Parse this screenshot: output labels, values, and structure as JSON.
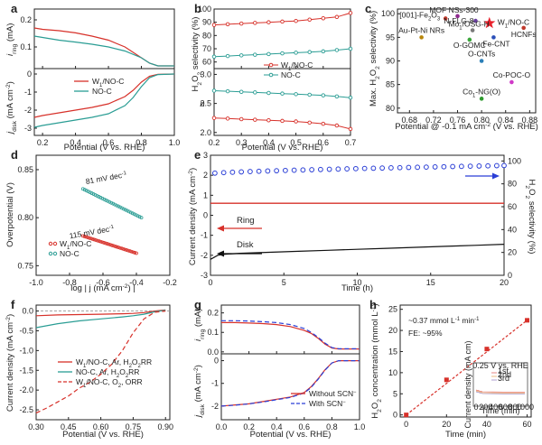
{
  "colors": {
    "red": "#d7312a",
    "teal": "#2a9d94",
    "blue": "#2b3fd6",
    "black": "#111111",
    "gray": "#888888"
  },
  "chart_data": [
    {
      "id": "a",
      "type": "line",
      "panel_label": "a",
      "xlabel": "Potential (V vs. RHE)",
      "xticks": [
        "0.2",
        "0.4",
        "0.6",
        "0.8",
        "1.0"
      ],
      "xlim": [
        0.15,
        1.0
      ],
      "top": {
        "ylabel": "i_ring (mA)",
        "ylabel_main": "i",
        "ylabel_sub": "ring",
        "ylabel_unit": " (mA)",
        "yticks": [
          "0.1",
          "0.2"
        ],
        "ylim": [
          0.02,
          0.24
        ],
        "series": [
          {
            "name": "W1/NO-C",
            "color": "red",
            "x": [
              0.15,
              0.2,
              0.3,
              0.4,
              0.5,
              0.6,
              0.7,
              0.8,
              0.85,
              0.9,
              1.0
            ],
            "y": [
              0.17,
              0.165,
              0.16,
              0.152,
              0.14,
              0.125,
              0.1,
              0.06,
              0.04,
              0.03,
              0.03
            ]
          },
          {
            "name": "NO-C",
            "color": "teal",
            "x": [
              0.15,
              0.2,
              0.3,
              0.4,
              0.5,
              0.6,
              0.7,
              0.8,
              0.85,
              0.9,
              1.0
            ],
            "y": [
              0.14,
              0.135,
              0.125,
              0.118,
              0.11,
              0.1,
              0.085,
              0.06,
              0.04,
              0.03,
              0.03
            ]
          }
        ]
      },
      "bottom": {
        "ylabel": "j_disk (mA cm^-2)",
        "ylabel_main": "j",
        "ylabel_sub": "disk",
        "ylabel_unit": " (mA cm",
        "ylabel_sup": "-2",
        "ylabel_close": ")",
        "yticks": [
          "-3",
          "-2",
          "-1",
          "0"
        ],
        "ylim": [
          -3.4,
          0.3
        ],
        "series": [
          {
            "name": "W1/NO-C",
            "color": "red",
            "x": [
              0.15,
              0.2,
              0.3,
              0.4,
              0.5,
              0.6,
              0.7,
              0.75,
              0.8,
              0.85,
              0.9,
              1.0
            ],
            "y": [
              -2.4,
              -2.3,
              -2.15,
              -2.0,
              -1.85,
              -1.65,
              -1.25,
              -0.9,
              -0.45,
              -0.12,
              -0.02,
              0
            ]
          },
          {
            "name": "NO-C",
            "color": "teal",
            "x": [
              0.15,
              0.2,
              0.3,
              0.4,
              0.5,
              0.6,
              0.7,
              0.75,
              0.8,
              0.85,
              0.9,
              1.0
            ],
            "y": [
              -2.95,
              -2.85,
              -2.7,
              -2.55,
              -2.4,
              -2.2,
              -1.75,
              -1.3,
              -0.7,
              -0.2,
              -0.03,
              0
            ]
          }
        ],
        "legend": [
          {
            "prefix": "W",
            "sub": "1",
            "suffix": "/NO-C",
            "color": "red"
          },
          {
            "prefix": "NO-C",
            "sub": "",
            "suffix": "",
            "color": "teal"
          }
        ]
      }
    },
    {
      "id": "b",
      "type": "line",
      "panel_label": "b",
      "xlabel": "Potential (V vs. RHE)",
      "xticks": [
        "0.2",
        "0.3",
        "0.4",
        "0.5",
        "0.6",
        "0.7"
      ],
      "xlim": [
        0.2,
        0.7
      ],
      "top": {
        "ylabel": "H2O2 selectivity (%)",
        "yticks": [
          "60",
          "70",
          "80",
          "90",
          "100"
        ],
        "ylim": [
          55,
          100
        ],
        "series": [
          {
            "name": "W1/NO-C",
            "color": "red",
            "marker": "circle",
            "x": [
              0.2,
              0.25,
              0.3,
              0.35,
              0.4,
              0.45,
              0.5,
              0.55,
              0.6,
              0.65,
              0.7
            ],
            "y": [
              88,
              88.5,
              89,
              89.5,
              90,
              90.5,
              91,
              92,
              93,
              94,
              97
            ]
          },
          {
            "name": "NO-C",
            "color": "teal",
            "marker": "circle",
            "x": [
              0.2,
              0.25,
              0.3,
              0.35,
              0.4,
              0.45,
              0.5,
              0.55,
              0.6,
              0.65,
              0.7
            ],
            "y": [
              64,
              64.5,
              65,
              65.5,
              66,
              66.5,
              67,
              67.5,
              68,
              69,
              70
            ]
          }
        ],
        "legend": [
          {
            "prefix": "W",
            "sub": "1",
            "suffix": "/NO-C",
            "color": "red"
          },
          {
            "prefix": "NO-C",
            "sub": "",
            "suffix": "",
            "color": "teal"
          }
        ]
      },
      "bottom": {
        "ylabel": "n",
        "yticks": [
          "2.0",
          "2.5",
          "3.0"
        ],
        "ylim": [
          1.95,
          3.1
        ],
        "series": [
          {
            "name": "W1/NO-C",
            "color": "red",
            "marker": "circle",
            "x": [
              0.2,
              0.25,
              0.3,
              0.35,
              0.4,
              0.45,
              0.5,
              0.55,
              0.6,
              0.65,
              0.7
            ],
            "y": [
              2.25,
              2.24,
              2.23,
              2.22,
              2.21,
              2.2,
              2.19,
              2.17,
              2.15,
              2.12,
              2.06
            ]
          },
          {
            "name": "NO-C",
            "color": "teal",
            "marker": "circle",
            "x": [
              0.2,
              0.25,
              0.3,
              0.35,
              0.4,
              0.45,
              0.5,
              0.55,
              0.6,
              0.65,
              0.7
            ],
            "y": [
              2.72,
              2.71,
              2.7,
              2.69,
              2.68,
              2.67,
              2.66,
              2.65,
              2.64,
              2.62,
              2.6
            ]
          }
        ]
      }
    },
    {
      "id": "c",
      "type": "scatter",
      "panel_label": "c",
      "xlabel": "Potential @ -0.1 mA cm^-2 (V vs. RHE)",
      "ylabel": "Max. H2O2 selectivity (%)",
      "xticks": [
        "0.68",
        "0.72",
        "0.76",
        "0.80",
        "0.84",
        "0.88"
      ],
      "xlim": [
        0.66,
        0.89
      ],
      "yticks": [
        "80",
        "85",
        "90",
        "95",
        "100"
      ],
      "ylim": [
        79,
        101
      ],
      "points": [
        {
          "label": "W1/NO-C",
          "x": 0.813,
          "y": 98,
          "color": "#e8202a",
          "marker": "star"
        },
        {
          "label": "[001]-Fe2O3",
          "x": 0.74,
          "y": 99,
          "color": "#c0392b",
          "marker": "circle"
        },
        {
          "label": "MOF NSs-300",
          "x": 0.76,
          "y": 99.5,
          "color": "#8e2a8e",
          "marker": "circle"
        },
        {
          "label": "N-FLG-8",
          "x": 0.79,
          "y": 98.5,
          "color": "#6a3fa0",
          "marker": "circle"
        },
        {
          "label": "Mo1/OSG-H",
          "x": 0.785,
          "y": 96.5,
          "color": "#7a7a7a",
          "marker": "circle"
        },
        {
          "label": "O-GOMC",
          "x": 0.78,
          "y": 94.5,
          "color": "#3aa63a",
          "marker": "circle"
        },
        {
          "label": "Au-Pt-Ni NRs",
          "x": 0.7,
          "y": 95,
          "color": "#b8860b",
          "marker": "circle"
        },
        {
          "label": "HCNFs",
          "x": 0.87,
          "y": 97,
          "color": "#c0392b",
          "marker": "circle"
        },
        {
          "label": "Fe-CNT",
          "x": 0.82,
          "y": 95,
          "color": "#2b4fb8",
          "marker": "circle"
        },
        {
          "label": "O-CNTs",
          "x": 0.8,
          "y": 90,
          "color": "#2b7fb8",
          "marker": "circle"
        },
        {
          "label": "Co-POC-O",
          "x": 0.85,
          "y": 85.5,
          "color": "#d03ac8",
          "marker": "circle"
        },
        {
          "label": "Co1-NG(O)",
          "x": 0.8,
          "y": 82,
          "color": "#2e9a2e",
          "marker": "circle"
        }
      ]
    },
    {
      "id": "d",
      "type": "scatter",
      "panel_label": "d",
      "xlabel": "log | j (mA cm^-2) |",
      "ylabel": "Overpotential (V)",
      "xticks": [
        "-1.0",
        "-0.8",
        "-0.6",
        "-0.4",
        "-0.2"
      ],
      "xlim": [
        -1.0,
        -0.2
      ],
      "yticks": [
        "0.75",
        "0.80",
        "0.85"
      ],
      "ylim": [
        0.74,
        0.865
      ],
      "series": [
        {
          "name": "W1/NO-C",
          "color": "red",
          "x1": -0.72,
          "y1": 0.781,
          "x2": -0.4,
          "y2": 0.763
        },
        {
          "name": "NO-C",
          "color": "teal",
          "x1": -0.72,
          "y1": 0.83,
          "x2": -0.37,
          "y2": 0.8
        }
      ],
      "annotations": [
        "81 mV dec",
        "115 mV dec"
      ],
      "legend": [
        {
          "prefix": "W",
          "sub": "1",
          "suffix": "/NO-C",
          "color": "red"
        },
        {
          "prefix": "NO-C",
          "sub": "",
          "suffix": "",
          "color": "teal"
        }
      ]
    },
    {
      "id": "e",
      "type": "line",
      "panel_label": "e",
      "xlabel": "Time (h)",
      "ylabel": "Current density (mA cm^-2)",
      "ylabel_right": "H2O2 selectivity (%)",
      "xticks": [
        "0",
        "5",
        "10",
        "15",
        "20"
      ],
      "xlim": [
        0,
        20
      ],
      "yticks": [
        "-3",
        "-2",
        "-1",
        "0",
        "1",
        "2",
        "3"
      ],
      "ylim": [
        -3,
        3
      ],
      "yticks_right": [
        "0",
        "20",
        "40",
        "60",
        "80",
        "100"
      ],
      "ylim_right": [
        0,
        105
      ],
      "ring": {
        "label": "Ring",
        "y": 0.6,
        "color": "red"
      },
      "disk": {
        "label": "Disk",
        "x": [
          0,
          0.5,
          1,
          2,
          4,
          6,
          8,
          10,
          12,
          14,
          16,
          18,
          20
        ],
        "y": [
          -2.2,
          -2.0,
          -1.95,
          -1.9,
          -1.85,
          -1.8,
          -1.75,
          -1.7,
          -1.65,
          -1.6,
          -1.55,
          -1.5,
          -1.45
        ]
      },
      "selectivity": {
        "x": [
          0.3,
          0.9,
          1.5,
          2.1,
          2.7,
          3.3,
          3.9,
          4.5,
          5.1,
          5.7,
          6.3,
          6.9,
          7.5,
          8.1,
          8.7,
          9.3,
          9.9,
          10.5,
          11.1,
          11.7,
          12.3,
          12.9,
          13.5,
          14.1,
          14.7,
          15.3,
          15.9,
          16.5,
          17.1,
          17.7,
          18.3,
          18.9,
          19.5,
          20.0
        ],
        "base": 89,
        "end": 96
      }
    },
    {
      "id": "f",
      "type": "line",
      "panel_label": "f",
      "xlabel": "Potential (V vs. RHE)",
      "ylabel": "Current density (mA cm^-2)",
      "xticks": [
        "0.30",
        "0.45",
        "0.60",
        "0.75",
        "0.90"
      ],
      "xlim": [
        0.3,
        0.92
      ],
      "yticks": [
        "-2.5",
        "-2.0",
        "-1.5",
        "-1.0",
        "-0.5",
        "0.0"
      ],
      "ylim": [
        -2.75,
        0.15
      ],
      "series": [
        {
          "name": "W1/NO-C, Ar, H2O2RR",
          "color": "red",
          "dash": false,
          "x": [
            0.3,
            0.4,
            0.5,
            0.6,
            0.7,
            0.75,
            0.8,
            0.85,
            0.9
          ],
          "y": [
            -0.12,
            -0.1,
            -0.09,
            -0.08,
            -0.07,
            -0.06,
            -0.04,
            0.0,
            0.03
          ]
        },
        {
          "name": "NO-C, Ar, H2O2RR",
          "color": "teal",
          "dash": false,
          "x": [
            0.3,
            0.4,
            0.5,
            0.6,
            0.7,
            0.75,
            0.8,
            0.85,
            0.9
          ],
          "y": [
            -0.42,
            -0.32,
            -0.25,
            -0.2,
            -0.15,
            -0.12,
            -0.08,
            -0.02,
            0.02
          ]
        },
        {
          "name": "W1/NO-C, O2, ORR",
          "color": "red",
          "dash": true,
          "x": [
            0.3,
            0.35,
            0.4,
            0.45,
            0.5,
            0.55,
            0.6,
            0.65,
            0.7,
            0.75,
            0.8,
            0.85,
            0.9
          ],
          "y": [
            -2.58,
            -2.45,
            -2.3,
            -2.15,
            -1.95,
            -1.8,
            -1.6,
            -1.35,
            -1.0,
            -0.55,
            -0.2,
            -0.03,
            0.0
          ]
        }
      ],
      "legend": [
        "W1/NO-C, Ar, H2O2RR",
        "NO-C, Ar, H2O2RR",
        "W1/NO-C, O2, ORR"
      ]
    },
    {
      "id": "g",
      "type": "line",
      "panel_label": "g",
      "xlabel": "Potential (V vs. RHE)",
      "xticks": [
        "0.0",
        "0.2",
        "0.4",
        "0.6",
        "0.8",
        "1.0"
      ],
      "xlim": [
        0,
        1.0
      ],
      "top": {
        "ylabel": "i_ring (mA)",
        "yticks": [
          "0.0",
          "0.1",
          "0.2"
        ],
        "ylim": [
          -0.01,
          0.24
        ],
        "series": [
          {
            "name": "Without SCN-",
            "color": "red",
            "dash": false,
            "x": [
              0,
              0.1,
              0.2,
              0.3,
              0.4,
              0.5,
              0.6,
              0.65,
              0.7,
              0.75,
              0.8,
              0.85,
              0.9,
              1.0
            ],
            "y": [
              0.15,
              0.15,
              0.148,
              0.145,
              0.14,
              0.13,
              0.11,
              0.095,
              0.07,
              0.04,
              0.02,
              0.015,
              0.015,
              0.015
            ]
          },
          {
            "name": "With SCN-",
            "color": "blue",
            "dash": true,
            "x": [
              0,
              0.1,
              0.2,
              0.3,
              0.4,
              0.5,
              0.6,
              0.65,
              0.7,
              0.75,
              0.8,
              0.85,
              0.9,
              1.0
            ],
            "y": [
              0.16,
              0.16,
              0.158,
              0.155,
              0.15,
              0.14,
              0.12,
              0.1,
              0.075,
              0.045,
              0.022,
              0.016,
              0.016,
              0.016
            ]
          }
        ]
      },
      "bottom": {
        "ylabel": "j_disk (mA cm^-2)",
        "yticks": [
          "-2",
          "-1",
          "0"
        ],
        "ylim": [
          -2.6,
          0.3
        ],
        "series": [
          {
            "name": "Without SCN-",
            "color": "red",
            "dash": false,
            "x": [
              0,
              0.1,
              0.2,
              0.3,
              0.4,
              0.5,
              0.6,
              0.65,
              0.7,
              0.75,
              0.8,
              0.85,
              0.9,
              1.0
            ],
            "y": [
              -2.0,
              -1.95,
              -1.9,
              -1.8,
              -1.7,
              -1.6,
              -1.4,
              -1.15,
              -0.8,
              -0.4,
              -0.1,
              0,
              0,
              0
            ]
          },
          {
            "name": "With SCN-",
            "color": "blue",
            "dash": true,
            "x": [
              0,
              0.1,
              0.2,
              0.3,
              0.4,
              0.5,
              0.6,
              0.65,
              0.7,
              0.75,
              0.8,
              0.85,
              0.9,
              1.0
            ],
            "y": [
              -2.0,
              -1.96,
              -1.9,
              -1.82,
              -1.72,
              -1.62,
              -1.42,
              -1.18,
              -0.82,
              -0.42,
              -0.1,
              0,
              0,
              0
            ]
          }
        ],
        "legend": [
          "Without SCN",
          "With SCN"
        ]
      }
    },
    {
      "id": "h",
      "type": "scatter",
      "panel_label": "h",
      "xlabel": "Time (min)",
      "ylabel": "H2O2 concentration (mmol L^-1)",
      "xticks": [
        "0",
        "20",
        "40",
        "60"
      ],
      "xlim": [
        -3,
        62
      ],
      "yticks": [
        "0",
        "5",
        "10",
        "15",
        "20",
        "25"
      ],
      "ylim": [
        -0.5,
        26
      ],
      "points": {
        "x": [
          0,
          20,
          40,
          60
        ],
        "y": [
          0,
          8.3,
          15.6,
          22.4
        ]
      },
      "fit": {
        "x": [
          0,
          60
        ],
        "y": [
          0,
          22.4
        ]
      },
      "annotation_rate": "~0.37 mmol L",
      "annotation_rate_unit": " min",
      "annotation_fe": "FE: ~95%",
      "inset": {
        "title": "0.25 V vs. RHE",
        "xlabel": "Time (min)",
        "ylabel": "Current density (mA cm)",
        "legend": [
          "1st",
          "2nd",
          "3rd"
        ],
        "xticks": [
          "0",
          "200",
          "400",
          "600",
          "800",
          "1000"
        ]
      }
    }
  ]
}
